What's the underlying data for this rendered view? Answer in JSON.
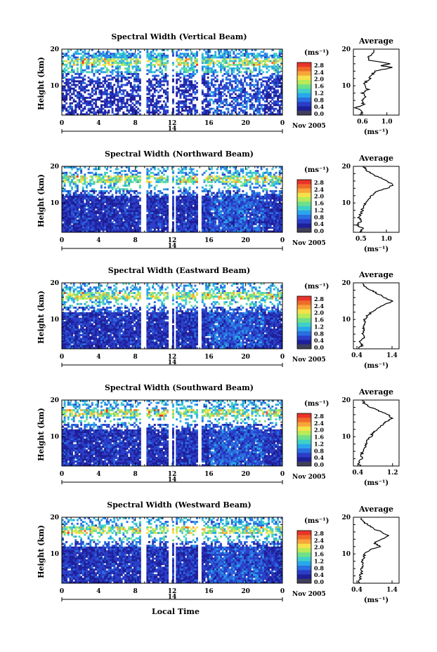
{
  "chart_data": {
    "type": "heatmap",
    "colorbar": {
      "unit": "(ms⁻¹)",
      "ticks": [
        "2.8",
        "2.4",
        "2.0",
        "1.6",
        "1.2",
        "0.8",
        "0.4",
        "0.0"
      ],
      "colors": [
        "#e8342a",
        "#f06a2a",
        "#f7a53a",
        "#f5e14a",
        "#b8ea5a",
        "#6fe08a",
        "#3fd0c8",
        "#2aa6ea",
        "#2a6fe0",
        "#2a3ec8",
        "#1f1f9a",
        "#40405a"
      ]
    },
    "xaxis": {
      "label": "Local Time",
      "ticks": [
        "0",
        "4",
        "8",
        "12",
        "16",
        "20",
        "0"
      ],
      "date_day": "14",
      "date_month": "Nov 2005"
    },
    "yaxis": {
      "label": "Height (km)",
      "ticks": [
        "20",
        "10"
      ]
    },
    "gap_hours": [
      [
        8.55,
        9.15
      ],
      [
        11.7,
        12.0
      ],
      [
        12.3,
        12.45
      ],
      [
        14.9,
        15.2
      ]
    ],
    "panels": [
      {
        "title": "Spectral Width (Vertical Beam)",
        "avg_title": "Average",
        "avg_xticks": [
          "0.6",
          "1.0"
        ],
        "avg_xlim": [
          0.45,
          1.2
        ],
        "avg_profile": [
          [
            2,
            0.55
          ],
          [
            3,
            0.6
          ],
          [
            4,
            0.5
          ],
          [
            5,
            0.62
          ],
          [
            6,
            0.58
          ],
          [
            7,
            0.66
          ],
          [
            8,
            0.6
          ],
          [
            9,
            0.7
          ],
          [
            10,
            0.62
          ],
          [
            11,
            0.65
          ],
          [
            12,
            0.72
          ],
          [
            13,
            0.75
          ],
          [
            14,
            0.82
          ],
          [
            15,
            1.1
          ],
          [
            15.5,
            0.9
          ],
          [
            16,
            1.05
          ],
          [
            17,
            0.72
          ],
          [
            18,
            0.7
          ],
          [
            19,
            0.78
          ],
          [
            20,
            0.8
          ]
        ]
      },
      {
        "title": "Spectral Width (Northward Beam)",
        "avg_title": "Average",
        "avg_xticks": [
          "0.5",
          "1.0"
        ],
        "avg_xlim": [
          0.35,
          1.25
        ],
        "avg_profile": [
          [
            2,
            0.45
          ],
          [
            3,
            0.55
          ],
          [
            4,
            0.42
          ],
          [
            5,
            0.5
          ],
          [
            6,
            0.46
          ],
          [
            7,
            0.5
          ],
          [
            8,
            0.52
          ],
          [
            9,
            0.55
          ],
          [
            10,
            0.6
          ],
          [
            11,
            0.62
          ],
          [
            12,
            0.72
          ],
          [
            13,
            0.8
          ],
          [
            14,
            1.0
          ],
          [
            15,
            1.15
          ],
          [
            16,
            1.0
          ],
          [
            17,
            0.85
          ],
          [
            18,
            0.7
          ],
          [
            19,
            0.6
          ],
          [
            20,
            0.55
          ]
        ]
      },
      {
        "title": "Spectral Width (Eastward Beam)",
        "avg_title": "Average",
        "avg_xticks": [
          "0.4",
          "1.4"
        ],
        "avg_xlim": [
          0.3,
          1.6
        ],
        "avg_profile": [
          [
            2,
            0.45
          ],
          [
            3,
            0.55
          ],
          [
            4,
            0.5
          ],
          [
            5,
            0.6
          ],
          [
            6,
            0.55
          ],
          [
            7,
            0.62
          ],
          [
            8,
            0.58
          ],
          [
            9,
            0.66
          ],
          [
            10,
            0.62
          ],
          [
            11,
            0.7
          ],
          [
            12,
            0.82
          ],
          [
            13,
            0.95
          ],
          [
            14,
            1.2
          ],
          [
            15,
            1.4
          ],
          [
            16,
            1.2
          ],
          [
            17,
            1.0
          ],
          [
            18,
            0.8
          ],
          [
            19,
            0.6
          ],
          [
            20,
            0.55
          ]
        ]
      },
      {
        "title": "Spectral Width (Southward Beam)",
        "avg_title": "Average",
        "avg_xticks": [
          "0.4",
          "1.2"
        ],
        "avg_xlim": [
          0.3,
          1.35
        ],
        "avg_profile": [
          [
            2,
            0.45
          ],
          [
            3,
            0.42
          ],
          [
            4,
            0.5
          ],
          [
            5,
            0.48
          ],
          [
            6,
            0.52
          ],
          [
            7,
            0.55
          ],
          [
            8,
            0.6
          ],
          [
            9,
            0.62
          ],
          [
            10,
            0.7
          ],
          [
            11,
            0.75
          ],
          [
            12,
            0.85
          ],
          [
            13,
            0.95
          ],
          [
            14,
            1.05
          ],
          [
            15,
            1.2
          ],
          [
            16,
            1.1
          ],
          [
            17,
            0.9
          ],
          [
            18,
            0.7
          ],
          [
            19,
            0.55
          ],
          [
            20,
            0.5
          ]
        ]
      },
      {
        "title": "Spectral Width (Westward Beam)",
        "avg_title": "Average",
        "avg_xticks": [
          "0.4",
          "1.4"
        ],
        "avg_xlim": [
          0.3,
          1.6
        ],
        "avg_profile": [
          [
            2,
            0.45
          ],
          [
            3,
            0.5
          ],
          [
            4,
            0.48
          ],
          [
            5,
            0.55
          ],
          [
            6,
            0.52
          ],
          [
            7,
            0.58
          ],
          [
            8,
            0.55
          ],
          [
            9,
            0.6
          ],
          [
            10,
            0.62
          ],
          [
            11,
            0.75
          ],
          [
            12,
            1.05
          ],
          [
            13,
            0.9
          ],
          [
            14,
            1.1
          ],
          [
            15,
            1.3
          ],
          [
            16,
            1.1
          ],
          [
            17,
            0.85
          ],
          [
            18,
            0.7
          ],
          [
            19,
            0.55
          ],
          [
            20,
            0.5
          ]
        ]
      }
    ]
  }
}
